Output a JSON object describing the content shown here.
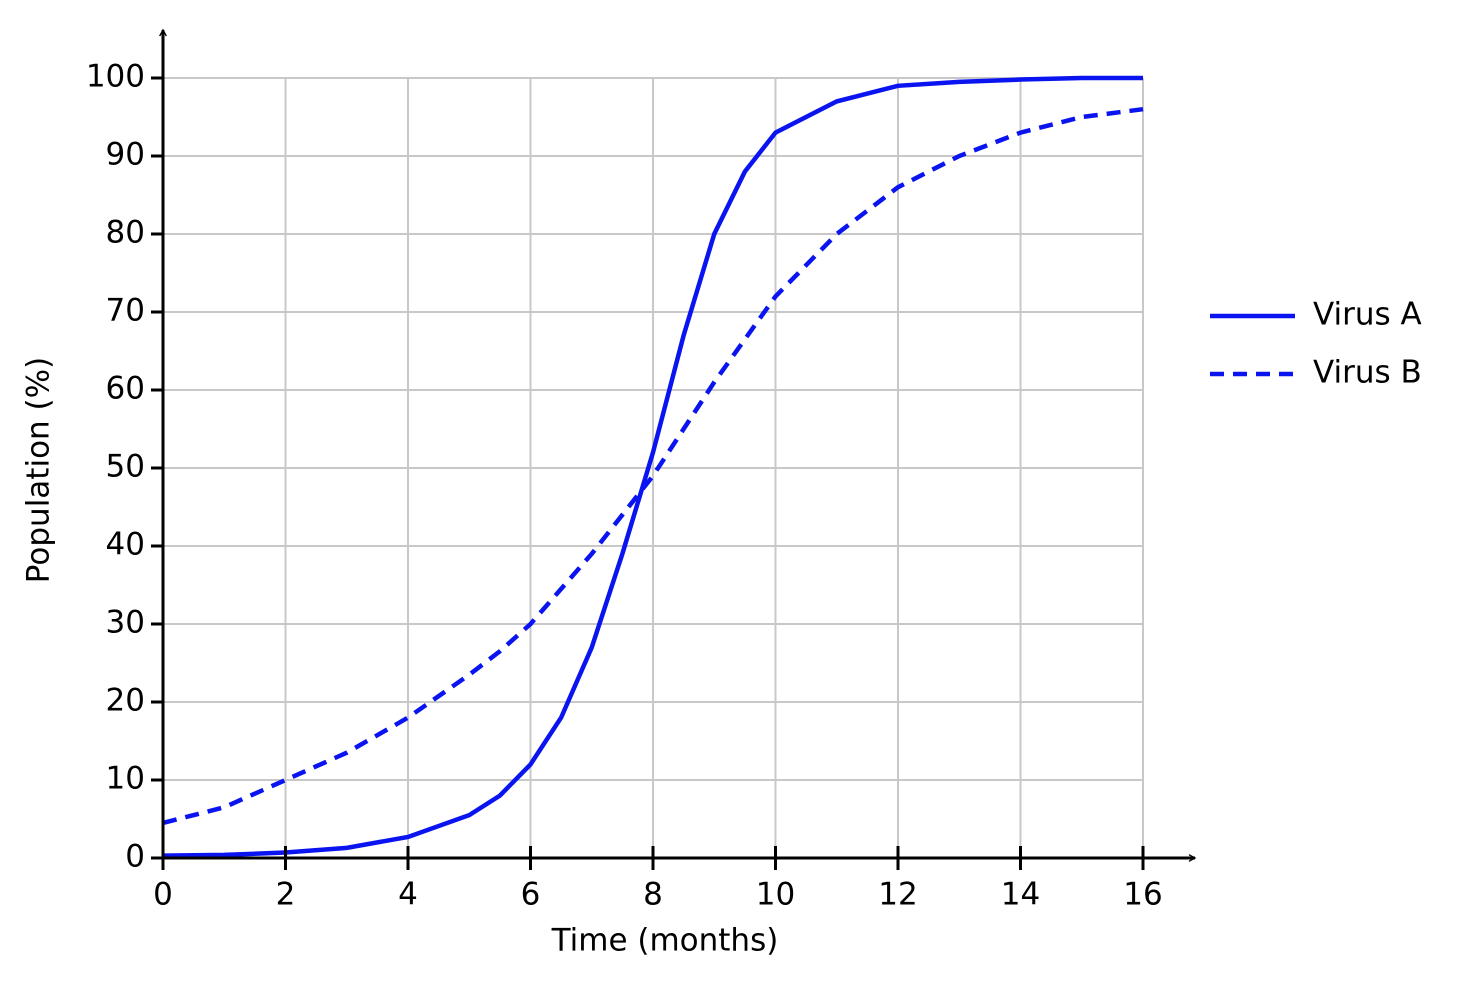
{
  "chart_data": {
    "type": "line",
    "x_label": "Time (months)",
    "y_label": "Population (%)",
    "x": [
      0,
      1,
      2,
      3,
      4,
      5,
      5.5,
      6,
      6.5,
      7,
      7.5,
      8,
      8.5,
      9,
      9.5,
      10,
      11,
      12,
      13,
      14,
      15,
      16
    ],
    "series": [
      {
        "name": "Virus A",
        "color": "#0a14f0",
        "dash": false,
        "values": [
          0.3,
          0.4,
          0.7,
          1.3,
          2.7,
          5.5,
          8,
          12,
          18,
          27,
          39,
          52,
          67,
          80,
          88,
          93,
          97,
          99,
          99.5,
          99.8,
          100,
          100
        ]
      },
      {
        "name": "Virus B",
        "color": "#0a14f0",
        "dash": true,
        "values": [
          4.5,
          6.5,
          10,
          13.5,
          18,
          23.5,
          26.5,
          30,
          34.5,
          39,
          44,
          49,
          55,
          61,
          66.5,
          72,
          80,
          86,
          90,
          93,
          95,
          96
        ]
      }
    ],
    "xlim": [
      0,
      16
    ],
    "xticks": [
      0,
      2,
      4,
      6,
      8,
      10,
      12,
      14,
      16
    ],
    "ylim": [
      0,
      100
    ],
    "yticks": [
      0,
      10,
      20,
      30,
      40,
      50,
      60,
      70,
      80,
      90,
      100
    ],
    "grid": true,
    "legend": "right"
  }
}
